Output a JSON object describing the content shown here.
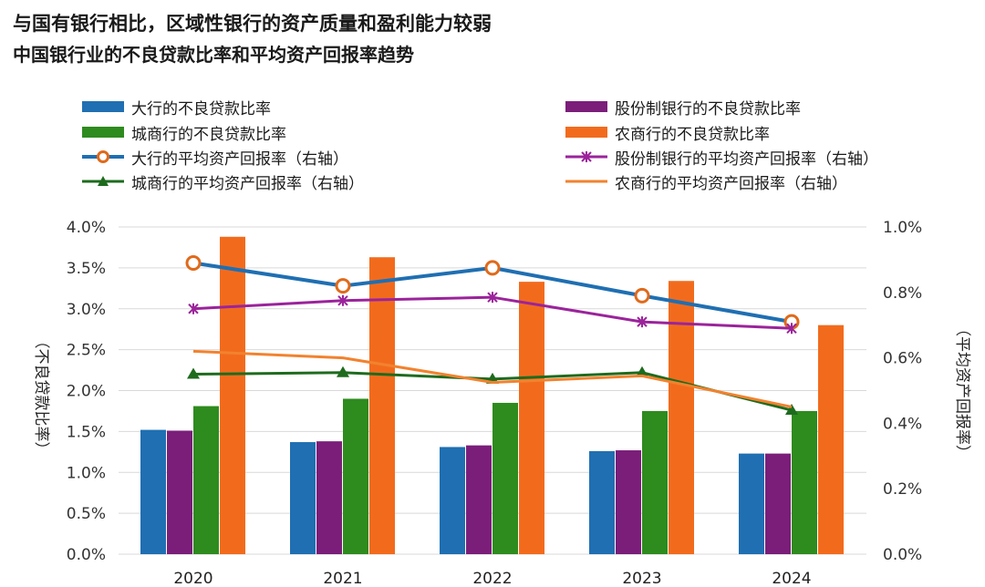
{
  "title": "与国有银行相比，区域性银行的资产质量和盈利能力较弱",
  "subtitle": "中国银行业的不良贷款比率和平均资产回报率趋势",
  "chart_data": {
    "type": "bar",
    "categories": [
      "2020",
      "2021",
      "2022",
      "2023",
      "2024"
    ],
    "ylabel_left": "（不良贷款比率）",
    "ylabel_right": "（平均资产回报率）",
    "y_left_ticks": [
      "0.0%",
      "0.5%",
      "1.0%",
      "1.5%",
      "2.0%",
      "2.5%",
      "3.0%",
      "3.5%",
      "4.0%"
    ],
    "y_right_ticks": [
      "0.0%",
      "0.2%",
      "0.4%",
      "0.6%",
      "0.8%",
      "1.0%"
    ],
    "ylim_left": [
      0,
      4.0
    ],
    "ylim_right": [
      0,
      1.0
    ],
    "bar_series": [
      {
        "name": "大行的不良贷款比率",
        "color": "#1F6FB2",
        "values": [
          1.52,
          1.37,
          1.31,
          1.26,
          1.23
        ]
      },
      {
        "name": "股份制银行的不良贷款比率",
        "color": "#7B1E7A",
        "values": [
          1.51,
          1.38,
          1.33,
          1.27,
          1.23
        ]
      },
      {
        "name": "城商行的不良贷款比率",
        "color": "#2E8B1E",
        "values": [
          1.81,
          1.9,
          1.85,
          1.75,
          1.75
        ]
      },
      {
        "name": "农商行的不良贷款比率",
        "color": "#F26B1D",
        "values": [
          3.88,
          3.63,
          3.33,
          3.34,
          2.8
        ]
      }
    ],
    "line_series": [
      {
        "name": "大行的平均资产回报率（右轴）",
        "color": "#1F6FB2",
        "marker": "circle",
        "values": [
          0.89,
          0.82,
          0.875,
          0.79,
          0.71
        ]
      },
      {
        "name": "股份制银行的平均资产回报率（右轴）",
        "color": "#9B239B",
        "marker": "star",
        "values": [
          0.75,
          0.775,
          0.785,
          0.71,
          0.69
        ]
      },
      {
        "name": "城商行的平均资产回报率（右轴）",
        "color": "#1E6B1E",
        "marker": "triangle",
        "values": [
          0.55,
          0.555,
          0.535,
          0.555,
          0.44
        ]
      },
      {
        "name": "农商行的平均资产回报率（右轴）",
        "color": "#F2822E",
        "marker": "none",
        "values": [
          0.62,
          0.6,
          0.525,
          0.545,
          0.45
        ]
      }
    ],
    "legend_placement": "top",
    "grid": true
  }
}
